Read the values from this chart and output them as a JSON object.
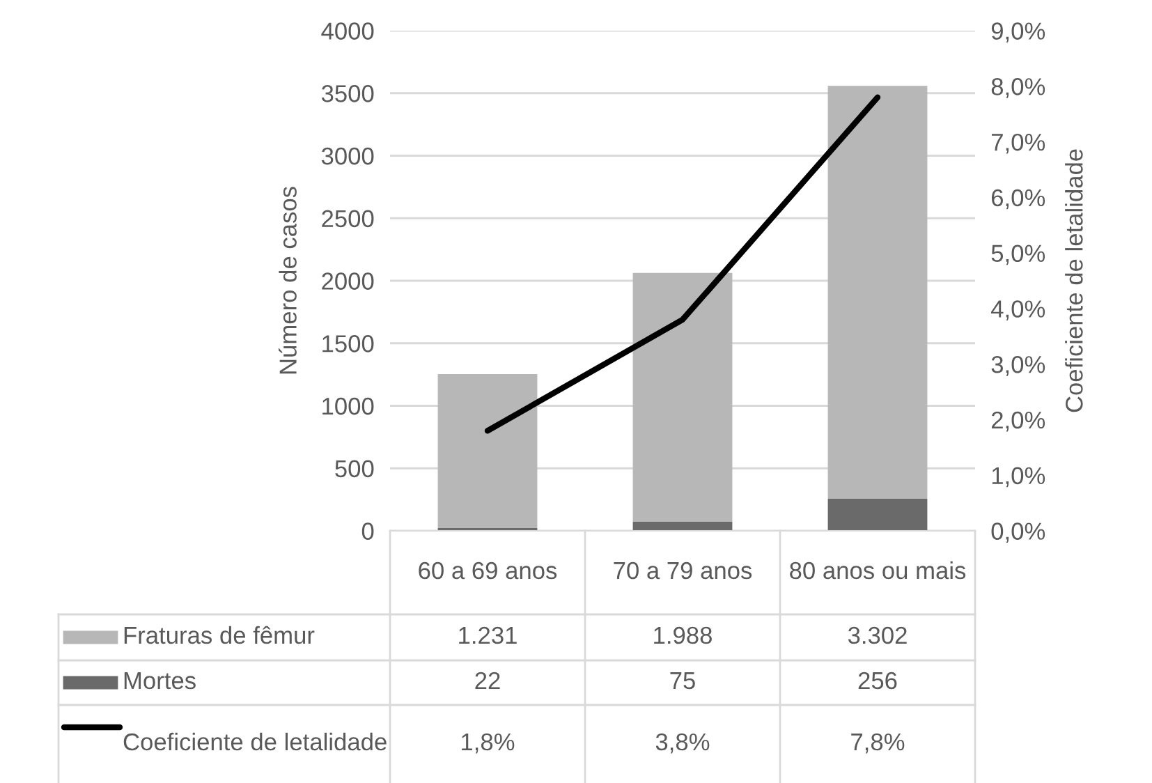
{
  "chart_data": {
    "type": "bar",
    "stacked": true,
    "categories": [
      "60 a 69 anos",
      "70 a 79 anos",
      "80 anos ou mais"
    ],
    "ylabel": "Número de casos",
    "y2label": "Coeficiente de letalidade",
    "ylim": [
      0,
      4000
    ],
    "yticks": [
      0,
      500,
      1000,
      1500,
      2000,
      2500,
      3000,
      3500,
      4000
    ],
    "y2lim": [
      0,
      9
    ],
    "y2ticks": [
      {
        "value": 0,
        "label": "0,0%"
      },
      {
        "value": 1,
        "label": "1,0%"
      },
      {
        "value": 2,
        "label": "2,0%"
      },
      {
        "value": 3,
        "label": "3,0%"
      },
      {
        "value": 4,
        "label": "4,0%"
      },
      {
        "value": 5,
        "label": "5,0%"
      },
      {
        "value": 6,
        "label": "6,0%"
      },
      {
        "value": 7,
        "label": "7,0%"
      },
      {
        "value": 8,
        "label": "8,0%"
      },
      {
        "value": 9,
        "label": "9,0%"
      }
    ],
    "grid": "y",
    "legend": "bottom",
    "series": [
      {
        "name": "Mortes",
        "color": "#6a6a6a",
        "values": [
          22,
          75,
          256
        ],
        "value_labels": [
          "22",
          "75",
          "256"
        ]
      },
      {
        "name": "Fraturas de fêmur",
        "color": "#b7b7b7",
        "values": [
          1231,
          1988,
          3302
        ],
        "value_labels": [
          "1.231",
          "1.988",
          "3.302"
        ]
      },
      {
        "name": "Coeficiente de letalidade",
        "type": "line",
        "axis": "y2",
        "color": "#000000",
        "values": [
          1.8,
          3.8,
          7.8
        ],
        "value_labels": [
          "1,8%",
          "3,8%",
          "7,8%"
        ]
      }
    ]
  }
}
